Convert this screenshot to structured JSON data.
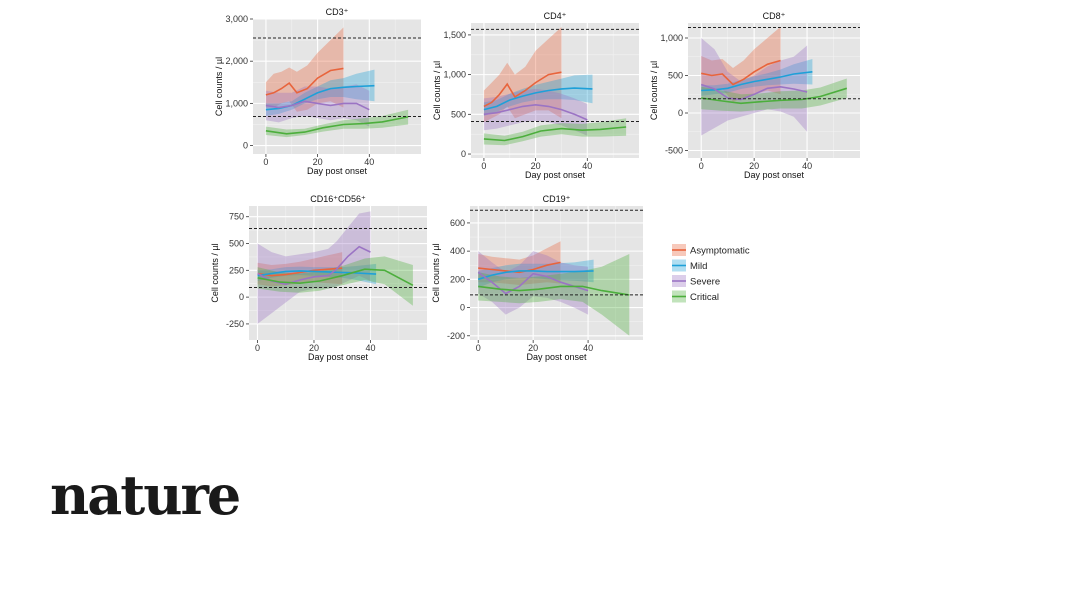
{
  "brand": {
    "name": "nature"
  },
  "legend": [
    {
      "key": "asymptomatic",
      "label": "Asymptomatic",
      "color": "#e8643c"
    },
    {
      "key": "mild",
      "label": "Mild",
      "color": "#1ea0d8"
    },
    {
      "key": "severe",
      "label": "Severe",
      "color": "#9b74c4"
    },
    {
      "key": "critical",
      "label": "Critical",
      "color": "#4cae3c"
    }
  ],
  "chart_data": [
    {
      "type": "line",
      "title": "CD3⁺",
      "xlabel": "Day post onset",
      "ylabel": "Cell counts / µl",
      "xlim": [
        -5,
        60
      ],
      "ylim": [
        -200,
        3000
      ],
      "xticks": [
        0,
        20,
        40
      ],
      "yticks": [
        {
          "v": 0,
          "label": "0"
        },
        {
          "v": 1000,
          "label": "1,000"
        },
        {
          "v": 2000,
          "label": "2,000"
        },
        {
          "v": 3000,
          "label": "3,000"
        }
      ],
      "reference_lines": [
        2550,
        690
      ],
      "series": [
        {
          "key": "asymptomatic",
          "x": [
            0,
            3,
            6,
            9,
            12,
            16,
            20,
            25,
            30
          ],
          "y": [
            1200,
            1250,
            1350,
            1480,
            1250,
            1350,
            1600,
            1780,
            1830
          ],
          "lower": [
            900,
            900,
            1000,
            1050,
            800,
            850,
            1000,
            1050,
            900
          ],
          "upper": [
            1500,
            1700,
            1750,
            1850,
            1750,
            1900,
            2200,
            2500,
            2800
          ]
        },
        {
          "key": "mild",
          "x": [
            0,
            5,
            10,
            15,
            20,
            25,
            30,
            35,
            42
          ],
          "y": [
            850,
            880,
            950,
            1100,
            1250,
            1350,
            1380,
            1400,
            1420
          ],
          "lower": [
            700,
            750,
            850,
            1000,
            1100,
            1150,
            1150,
            1100,
            1050
          ],
          "upper": [
            1000,
            1000,
            1050,
            1250,
            1400,
            1550,
            1600,
            1700,
            1800
          ]
        },
        {
          "key": "severe",
          "x": [
            0,
            5,
            10,
            15,
            20,
            25,
            30,
            35,
            40
          ],
          "y": [
            950,
            900,
            950,
            1050,
            1000,
            950,
            1000,
            1000,
            850
          ],
          "lower": [
            600,
            550,
            650,
            700,
            650,
            600,
            650,
            600,
            450
          ],
          "upper": [
            1300,
            1250,
            1250,
            1400,
            1400,
            1350,
            1400,
            1450,
            1300
          ]
        },
        {
          "key": "critical",
          "x": [
            0,
            8,
            15,
            22,
            30,
            38,
            45,
            55
          ],
          "y": [
            350,
            280,
            320,
            420,
            500,
            520,
            560,
            680
          ],
          "lower": [
            250,
            200,
            250,
            330,
            400,
            400,
            420,
            500
          ],
          "upper": [
            450,
            380,
            400,
            500,
            600,
            650,
            700,
            850
          ]
        }
      ]
    },
    {
      "type": "line",
      "title": "CD4⁺",
      "xlabel": "Day post onset",
      "ylabel": "Cell counts / µl",
      "xlim": [
        -5,
        60
      ],
      "ylim": [
        -50,
        1650
      ],
      "xticks": [
        0,
        20,
        40
      ],
      "yticks": [
        {
          "v": 0,
          "label": "0"
        },
        {
          "v": 500,
          "label": "500"
        },
        {
          "v": 1000,
          "label": "1,000"
        },
        {
          "v": 1500,
          "label": "1,500"
        }
      ],
      "reference_lines": [
        1570,
        410
      ],
      "series": [
        {
          "key": "asymptomatic",
          "x": [
            0,
            3,
            6,
            9,
            12,
            16,
            20,
            25,
            30
          ],
          "y": [
            600,
            650,
            750,
            880,
            720,
            800,
            900,
            1000,
            1030
          ],
          "lower": [
            400,
            450,
            500,
            600,
            450,
            500,
            550,
            550,
            450
          ],
          "upper": [
            800,
            900,
            1000,
            1150,
            1000,
            1100,
            1300,
            1450,
            1600
          ]
        },
        {
          "key": "mild",
          "x": [
            0,
            5,
            10,
            15,
            20,
            25,
            30,
            35,
            42
          ],
          "y": [
            560,
            600,
            680,
            730,
            770,
            800,
            820,
            830,
            820
          ],
          "lower": [
            480,
            530,
            600,
            650,
            680,
            690,
            690,
            680,
            640
          ],
          "upper": [
            650,
            680,
            760,
            820,
            870,
            910,
            950,
            990,
            1000
          ]
        },
        {
          "key": "severe",
          "x": [
            0,
            5,
            10,
            15,
            20,
            25,
            30,
            35,
            40
          ],
          "y": [
            500,
            520,
            560,
            600,
            620,
            600,
            560,
            500,
            430
          ],
          "lower": [
            300,
            320,
            360,
            400,
            420,
            400,
            360,
            300,
            230
          ],
          "upper": [
            700,
            720,
            760,
            800,
            820,
            800,
            760,
            700,
            630
          ]
        },
        {
          "key": "critical",
          "x": [
            0,
            8,
            15,
            22,
            30,
            38,
            45,
            55
          ],
          "y": [
            190,
            170,
            220,
            290,
            320,
            300,
            310,
            340
          ],
          "lower": [
            120,
            110,
            160,
            220,
            250,
            220,
            220,
            230
          ],
          "upper": [
            260,
            230,
            280,
            360,
            390,
            380,
            400,
            450
          ]
        }
      ]
    },
    {
      "type": "line",
      "title": "CD8⁺",
      "xlabel": "Day post onset",
      "ylabel": "Cell counts / µl",
      "xlim": [
        -5,
        60
      ],
      "ylim": [
        -600,
        1200
      ],
      "xticks": [
        0,
        20,
        40
      ],
      "yticks": [
        {
          "v": -500,
          "label": "-500"
        },
        {
          "v": 0,
          "label": "0"
        },
        {
          "v": 500,
          "label": "500"
        },
        {
          "v": 1000,
          "label": "1,000"
        }
      ],
      "reference_lines": [
        1140,
        190
      ],
      "series": [
        {
          "key": "asymptomatic",
          "x": [
            0,
            4,
            8,
            12,
            16,
            20,
            25,
            30
          ],
          "y": [
            530,
            500,
            520,
            380,
            450,
            550,
            650,
            700
          ],
          "lower": [
            300,
            300,
            320,
            150,
            200,
            250,
            300,
            250
          ],
          "upper": [
            760,
            700,
            720,
            600,
            700,
            850,
            1000,
            1150
          ]
        },
        {
          "key": "mild",
          "x": [
            0,
            5,
            10,
            15,
            20,
            25,
            30,
            35,
            42
          ],
          "y": [
            300,
            310,
            330,
            380,
            420,
            450,
            480,
            520,
            550
          ],
          "lower": [
            230,
            250,
            270,
            320,
            350,
            370,
            380,
            390,
            380
          ],
          "upper": [
            370,
            370,
            390,
            440,
            490,
            530,
            580,
            650,
            720
          ]
        },
        {
          "key": "severe",
          "x": [
            0,
            5,
            10,
            15,
            20,
            25,
            30,
            35,
            40
          ],
          "y": [
            380,
            320,
            200,
            180,
            250,
            330,
            350,
            320,
            280
          ],
          "lower": [
            -300,
            -200,
            -100,
            -50,
            0,
            50,
            20,
            -50,
            -250
          ],
          "upper": [
            1000,
            850,
            550,
            420,
            500,
            620,
            700,
            750,
            900
          ]
        },
        {
          "key": "critical",
          "x": [
            0,
            8,
            15,
            22,
            30,
            38,
            45,
            55
          ],
          "y": [
            200,
            160,
            130,
            150,
            170,
            180,
            220,
            330
          ],
          "lower": [
            50,
            30,
            20,
            40,
            60,
            60,
            100,
            200
          ],
          "upper": [
            350,
            300,
            250,
            260,
            290,
            300,
            340,
            460
          ]
        }
      ]
    },
    {
      "type": "line",
      "title": "CD16⁺CD56⁺",
      "xlabel": "Day post onset",
      "ylabel": "Cell counts / µl",
      "xlim": [
        -3,
        60
      ],
      "ylim": [
        -400,
        850
      ],
      "xticks": [
        0,
        20,
        40
      ],
      "yticks": [
        {
          "v": -250,
          "label": "-250"
        },
        {
          "v": 0,
          "label": "0"
        },
        {
          "v": 250,
          "label": "250"
        },
        {
          "v": 500,
          "label": "500"
        },
        {
          "v": 750,
          "label": "750"
        }
      ],
      "reference_lines": [
        640,
        90
      ],
      "series": [
        {
          "key": "asymptomatic",
          "x": [
            0,
            5,
            10,
            15,
            20,
            25,
            30
          ],
          "y": [
            220,
            200,
            210,
            230,
            250,
            260,
            270
          ],
          "lower": [
            120,
            100,
            110,
            130,
            140,
            130,
            120
          ],
          "upper": [
            320,
            300,
            310,
            330,
            360,
            390,
            420
          ]
        },
        {
          "key": "mild",
          "x": [
            0,
            5,
            10,
            15,
            20,
            25,
            30,
            35,
            42
          ],
          "y": [
            200,
            220,
            240,
            245,
            240,
            235,
            230,
            225,
            215
          ],
          "lower": [
            150,
            180,
            200,
            205,
            200,
            190,
            180,
            160,
            120
          ],
          "upper": [
            250,
            260,
            280,
            285,
            280,
            280,
            280,
            290,
            310
          ]
        },
        {
          "key": "severe",
          "x": [
            0,
            5,
            10,
            15,
            20,
            25,
            28,
            32,
            36,
            40
          ],
          "y": [
            220,
            150,
            120,
            160,
            190,
            200,
            260,
            380,
            470,
            420
          ],
          "lower": [
            -250,
            -150,
            -50,
            50,
            80,
            80,
            100,
            150,
            200,
            150
          ],
          "upper": [
            500,
            420,
            380,
            400,
            420,
            450,
            520,
            650,
            780,
            800
          ]
        },
        {
          "key": "critical",
          "x": [
            0,
            8,
            15,
            22,
            30,
            38,
            45,
            55
          ],
          "y": [
            180,
            140,
            130,
            150,
            200,
            260,
            250,
            110
          ],
          "lower": [
            80,
            50,
            40,
            60,
            110,
            160,
            120,
            -80
          ],
          "upper": [
            280,
            230,
            220,
            240,
            290,
            360,
            380,
            300
          ]
        }
      ]
    },
    {
      "type": "line",
      "title": "CD19⁺",
      "xlabel": "Day post onset",
      "ylabel": "Cell counts / µl",
      "xlim": [
        -3,
        60
      ],
      "ylim": [
        -230,
        720
      ],
      "xticks": [
        0,
        20,
        40
      ],
      "yticks": [
        {
          "v": -200,
          "label": "-200"
        },
        {
          "v": 0,
          "label": "0"
        },
        {
          "v": 200,
          "label": "200"
        },
        {
          "v": 400,
          "label": "400"
        },
        {
          "v": 600,
          "label": "600"
        }
      ],
      "reference_lines": [
        690,
        90
      ],
      "series": [
        {
          "key": "asymptomatic",
          "x": [
            0,
            5,
            10,
            15,
            20,
            25,
            30
          ],
          "y": [
            280,
            270,
            260,
            250,
            270,
            300,
            320
          ],
          "lower": [
            180,
            180,
            170,
            160,
            170,
            180,
            170
          ],
          "upper": [
            380,
            360,
            350,
            340,
            370,
            420,
            470
          ]
        },
        {
          "key": "mild",
          "x": [
            0,
            5,
            10,
            15,
            20,
            25,
            30,
            35,
            42
          ],
          "y": [
            200,
            230,
            250,
            260,
            260,
            255,
            255,
            255,
            260
          ],
          "lower": [
            140,
            180,
            200,
            210,
            210,
            200,
            195,
            190,
            180
          ],
          "upper": [
            260,
            280,
            300,
            310,
            310,
            310,
            315,
            320,
            340
          ]
        },
        {
          "key": "severe",
          "x": [
            0,
            5,
            10,
            15,
            20,
            25,
            30,
            35,
            40
          ],
          "y": [
            250,
            180,
            100,
            150,
            240,
            220,
            180,
            150,
            120
          ],
          "lower": [
            100,
            40,
            -50,
            0,
            80,
            70,
            40,
            0,
            -50
          ],
          "upper": [
            400,
            320,
            250,
            300,
            400,
            370,
            320,
            300,
            290
          ]
        },
        {
          "key": "critical",
          "x": [
            0,
            8,
            15,
            22,
            30,
            38,
            45,
            55
          ],
          "y": [
            150,
            130,
            120,
            130,
            150,
            150,
            120,
            90
          ],
          "lower": [
            50,
            40,
            30,
            40,
            60,
            40,
            -50,
            -200
          ],
          "upper": [
            250,
            220,
            210,
            220,
            240,
            260,
            290,
            380
          ]
        }
      ]
    }
  ]
}
